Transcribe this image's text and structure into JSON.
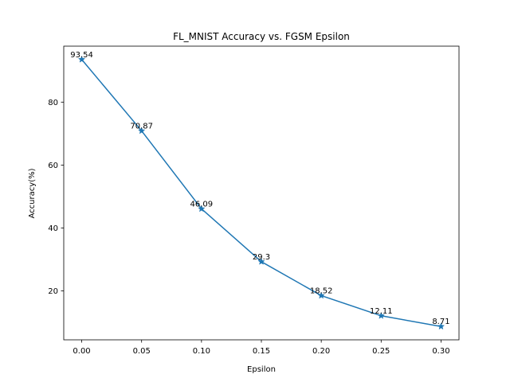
{
  "chart_data": {
    "type": "line",
    "title": "FL_MNIST Accuracy vs. FGSM Epsilon",
    "xlabel": "Epsilon",
    "ylabel": "Accuracy(%)",
    "x": [
      0.0,
      0.05,
      0.1,
      0.15,
      0.2,
      0.25,
      0.3
    ],
    "series": [
      {
        "values": [
          93.54,
          70.87,
          46.09,
          29.3,
          18.52,
          12.11,
          8.71
        ],
        "marker": "star",
        "color": "#1f77b4"
      }
    ],
    "data_labels": [
      "93.54",
      "70.87",
      "46.09",
      "29.3",
      "18.52",
      "12.11",
      "8.71"
    ],
    "xticks": [
      0.0,
      0.05,
      0.1,
      0.15,
      0.2,
      0.25,
      0.3
    ],
    "xtick_labels": [
      "0.00",
      "0.05",
      "0.10",
      "0.15",
      "0.20",
      "0.25",
      "0.30"
    ],
    "yticks": [
      20,
      40,
      60,
      80
    ],
    "ytick_labels": [
      "20",
      "40",
      "60",
      "80"
    ],
    "xlim": [
      -0.015,
      0.315
    ],
    "ylim": [
      4.47,
      97.78
    ],
    "grid": false,
    "legend": "none"
  }
}
